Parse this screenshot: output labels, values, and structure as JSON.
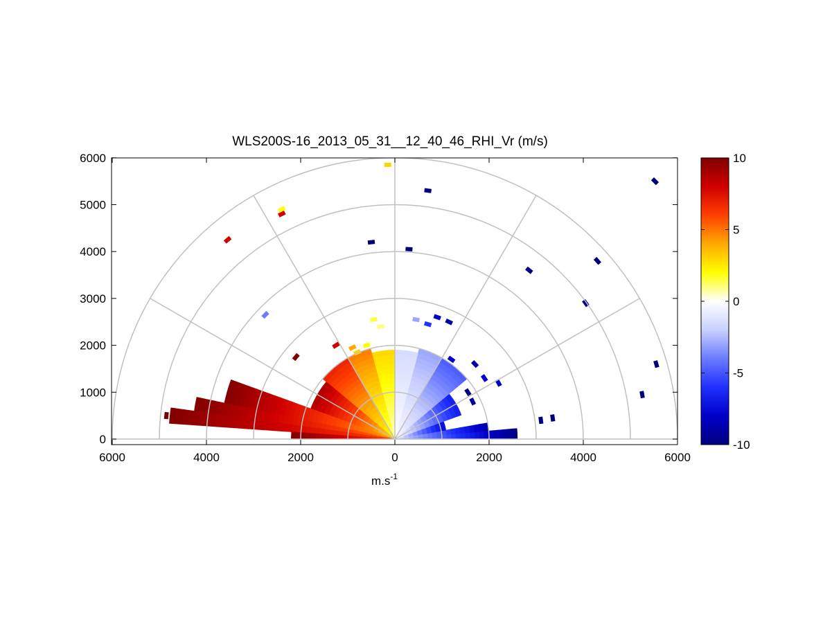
{
  "chart_data": {
    "type": "heatmap",
    "subtype": "polar-rhi-sector",
    "title": "WLS200S-16_2013_05_31__12_40_46_RHI_Vr (m/s)",
    "xlabel": "m.s",
    "xlabel_superscript": "-1",
    "x_tick_labels": [
      "6000",
      "4000",
      "2000",
      "0",
      "2000",
      "4000",
      "6000"
    ],
    "x_tick_values": [
      -6000,
      -4000,
      -2000,
      0,
      2000,
      4000,
      6000
    ],
    "y_tick_labels": [
      "0",
      "1000",
      "2000",
      "3000",
      "4000",
      "5000",
      "6000"
    ],
    "y_tick_values": [
      0,
      1000,
      2000,
      3000,
      4000,
      5000,
      6000
    ],
    "xlim": [
      -6000,
      6000
    ],
    "ylim": [
      0,
      6000
    ],
    "range_rings": [
      1000,
      2000,
      3000,
      4000,
      5000,
      6000
    ],
    "angle_spokes_deg": [
      0,
      30,
      60,
      90,
      120,
      150,
      180
    ],
    "colorbar": {
      "min": -10,
      "max": 10,
      "tick_labels": [
        "10",
        "5",
        "0",
        "-5",
        "-10"
      ],
      "tick_values": [
        10,
        5,
        0,
        -5,
        -10
      ],
      "colormap": [
        "#00007f",
        "#0000c8",
        "#1f30ff",
        "#6b7cff",
        "#c9cfff",
        "#ffffff",
        "#ffff00",
        "#ffaa00",
        "#ff4000",
        "#d00000",
        "#7f0000"
      ]
    },
    "sectors": [
      {
        "elev_start": 0,
        "elev_end": 5,
        "r_start": 0,
        "r_end": 2600,
        "vr_start": -2,
        "vr_end": -10
      },
      {
        "elev_start": 5,
        "elev_end": 10,
        "r_start": 0,
        "r_end": 2000,
        "vr_start": -1.5,
        "vr_end": -9
      },
      {
        "elev_start": 10,
        "elev_end": 20,
        "r_start": 0,
        "r_end": 1100,
        "vr_start": -1,
        "vr_end": -8
      },
      {
        "elev_start": 20,
        "elev_end": 40,
        "r_start": 0,
        "r_end": 1500,
        "vr_start": -0.5,
        "vr_end": -7
      },
      {
        "elev_start": 40,
        "elev_end": 60,
        "r_start": 0,
        "r_end": 2000,
        "vr_start": -0.3,
        "vr_end": -5
      },
      {
        "elev_start": 60,
        "elev_end": 75,
        "r_start": 0,
        "r_end": 1950,
        "vr_start": -0.2,
        "vr_end": -3
      },
      {
        "elev_start": 75,
        "elev_end": 90,
        "r_start": 0,
        "r_end": 1850,
        "vr_start": -0.1,
        "vr_end": -1.5
      },
      {
        "elev_start": 90,
        "elev_end": 105,
        "r_start": 0,
        "r_end": 1900,
        "vr_start": 0.5,
        "vr_end": 3
      },
      {
        "elev_start": 105,
        "elev_end": 120,
        "r_start": 0,
        "r_end": 2000,
        "vr_start": 1,
        "vr_end": 5
      },
      {
        "elev_start": 120,
        "elev_end": 140,
        "r_start": 0,
        "r_end": 2000,
        "vr_start": 2,
        "vr_end": 7
      },
      {
        "elev_start": 140,
        "elev_end": 160,
        "r_start": 0,
        "r_end": 1900,
        "vr_start": 3,
        "vr_end": 9
      },
      {
        "elev_start": 160,
        "elev_end": 168,
        "r_start": 0,
        "r_end": 3700,
        "vr_start": 4,
        "vr_end": 10
      },
      {
        "elev_start": 168,
        "elev_end": 172,
        "r_start": 0,
        "r_end": 4300,
        "vr_start": 5,
        "vr_end": 10
      },
      {
        "elev_start": 172,
        "elev_end": 176,
        "r_start": 0,
        "r_end": 4800,
        "vr_start": 6,
        "vr_end": 10
      },
      {
        "elev_start": 176,
        "elev_end": 180,
        "r_start": 0,
        "r_end": 2200,
        "vr_start": 6,
        "vr_end": 10
      }
    ],
    "scatter_cells": [
      {
        "x": 5520,
        "y": 5500,
        "vr": -10
      },
      {
        "x": 700,
        "y": 5300,
        "vr": -10
      },
      {
        "x": 4300,
        "y": 3800,
        "vr": -10
      },
      {
        "x": 2850,
        "y": 3600,
        "vr": -10
      },
      {
        "x": 4050,
        "y": 2900,
        "vr": -10
      },
      {
        "x": 5550,
        "y": 1600,
        "vr": -10
      },
      {
        "x": 5250,
        "y": 950,
        "vr": -10
      },
      {
        "x": 300,
        "y": 4050,
        "vr": -10
      },
      {
        "x": -500,
        "y": 4200,
        "vr": -10
      },
      {
        "x": -150,
        "y": 5850,
        "vr": 3
      },
      {
        "x": -2400,
        "y": 4900,
        "vr": 2
      },
      {
        "x": -2400,
        "y": 4800,
        "vr": 8
      },
      {
        "x": -3550,
        "y": 4250,
        "vr": 8
      },
      {
        "x": -2750,
        "y": 2650,
        "vr": -4
      },
      {
        "x": -2100,
        "y": 1750,
        "vr": 10
      },
      {
        "x": -1250,
        "y": 2000,
        "vr": 8
      },
      {
        "x": -4850,
        "y": 500,
        "vr": 10
      },
      {
        "x": 900,
        "y": 2600,
        "vr": -8
      },
      {
        "x": 1150,
        "y": 2500,
        "vr": -9
      },
      {
        "x": 700,
        "y": 2450,
        "vr": -6
      },
      {
        "x": 450,
        "y": 2550,
        "vr": -3
      },
      {
        "x": -450,
        "y": 2550,
        "vr": 1.5
      },
      {
        "x": -300,
        "y": 2400,
        "vr": 1
      },
      {
        "x": 1200,
        "y": 1700,
        "vr": -8
      },
      {
        "x": 1700,
        "y": 1600,
        "vr": -9
      },
      {
        "x": 1900,
        "y": 1300,
        "vr": -8
      },
      {
        "x": 2200,
        "y": 1200,
        "vr": -8
      },
      {
        "x": -900,
        "y": 1950,
        "vr": 4
      },
      {
        "x": -800,
        "y": 1850,
        "vr": 3
      },
      {
        "x": -600,
        "y": 2000,
        "vr": 2
      },
      {
        "x": 1650,
        "y": 800,
        "vr": -9
      },
      {
        "x": 1550,
        "y": 1000,
        "vr": -10
      },
      {
        "x": 3350,
        "y": 450,
        "vr": -10
      },
      {
        "x": 3100,
        "y": 400,
        "vr": -10
      }
    ]
  }
}
